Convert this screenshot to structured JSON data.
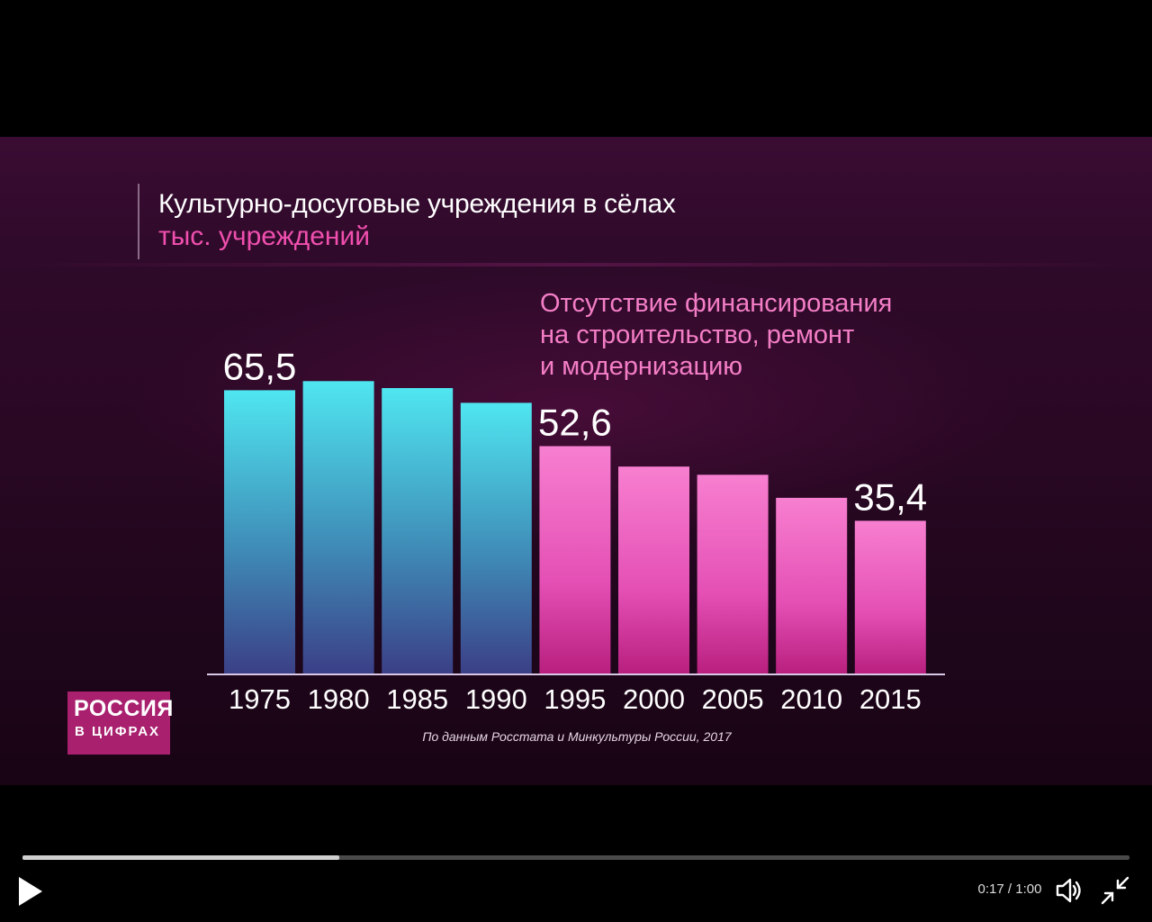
{
  "chart_data": {
    "type": "bar",
    "title": "Культурно-досуговые учреждения в сёлах",
    "subtitle": "тыс. учреждений",
    "categories": [
      "1975",
      "1980",
      "1985",
      "1990",
      "1995",
      "2000",
      "2005",
      "2010",
      "2015"
    ],
    "values": [
      65.5,
      67.6,
      66.0,
      62.6,
      52.6,
      47.9,
      46.0,
      40.7,
      35.4
    ],
    "data_labels": [
      "65,5",
      "",
      "",
      "",
      "52,6",
      "",
      "",
      "",
      "35,4"
    ],
    "ylim": [
      0,
      70
    ],
    "annotation": [
      "Отсутствие финансирования",
      "на строительство, ремонт",
      "и модернизацию"
    ],
    "grid": false,
    "colors": {
      "early": "#4fe6f0",
      "early_bottom": "#3b3f86",
      "late": "#f77fd0",
      "late_bottom": "#b81f7e",
      "axis": "#d9c7e6"
    },
    "source": "По данным Росстата и Минкультуры России, 2017"
  },
  "logo": {
    "line1": "РОССИЯ",
    "line2": "В ЦИФРАХ",
    "color": "#a8206e"
  },
  "player": {
    "time": "0:17 / 1:00",
    "progress_fraction": 0.286,
    "play_icon": "play-icon",
    "volume_icon": "volume-icon",
    "fullscreen_icon": "exit-fullscreen-icon"
  }
}
